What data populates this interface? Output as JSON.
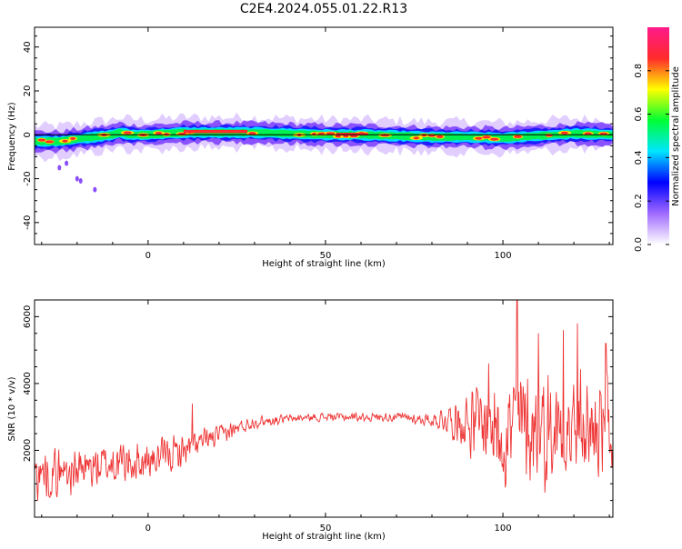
{
  "title": "C2E4.2024.055.01.22.R13",
  "chart_data": [
    {
      "type": "heatmap",
      "xlabel": "Height of straight line (km)",
      "ylabel": "Frequency (Hz)",
      "xlim": [
        -32,
        131
      ],
      "ylim": [
        -50,
        49
      ],
      "xticks": [
        0,
        50,
        100
      ],
      "yticks": [
        -40,
        -20,
        0,
        20,
        40
      ],
      "center_freq": {
        "x": [
          -32,
          -25,
          -20,
          -15,
          -10,
          -8,
          -5,
          0,
          10,
          20,
          30,
          40,
          50,
          60,
          70,
          80,
          90,
          100,
          110,
          120,
          131
        ],
        "y": [
          -3,
          -3,
          -2,
          -1,
          0,
          1,
          0,
          0,
          1,
          1,
          1,
          0.5,
          0,
          0,
          -0.5,
          -1,
          -1,
          -1.5,
          -0.5,
          0.5,
          0
        ]
      },
      "colorbar": {
        "label": "Normalized spectral amplitude",
        "ticks": [
          0.0,
          0.2,
          0.4,
          0.6,
          0.8
        ],
        "range": [
          0.0,
          1.0
        ],
        "colors": [
          "#ffffff",
          "#a06bff",
          "#0000ff",
          "#00e6ff",
          "#00ff33",
          "#ffff00",
          "#ff2a2a",
          "#ff1a8c"
        ]
      }
    },
    {
      "type": "line",
      "xlabel": "Height of straight line (km)",
      "ylabel": "SNR (10 * v/v)",
      "xlim": [
        -32,
        131
      ],
      "ylim": [
        0,
        6500
      ],
      "xticks": [
        0,
        50,
        100
      ],
      "yticks": [
        2000,
        4000,
        6000
      ],
      "color": "#ee3333",
      "trend": {
        "x": [
          -32,
          -20,
          -10,
          0,
          10,
          20,
          30,
          40,
          50,
          60,
          70,
          80,
          85,
          90,
          95,
          100,
          105,
          110,
          120,
          131
        ],
        "y": [
          1300,
          1400,
          1600,
          1650,
          2000,
          2450,
          2850,
          2950,
          3000,
          3000,
          3000,
          2900,
          2950,
          2850,
          2800,
          2650,
          2750,
          2700,
          2650,
          2600
        ]
      },
      "noise_amplitude": {
        "x": [
          -32,
          -10,
          0,
          10,
          20,
          30,
          40,
          50,
          60,
          70,
          80,
          85,
          90,
          95,
          100,
          110,
          120,
          131
        ],
        "y": [
          900,
          800,
          650,
          600,
          350,
          220,
          150,
          150,
          150,
          170,
          220,
          600,
          1100,
          1600,
          2100,
          2100,
          2000,
          1900
        ]
      },
      "spikes": [
        {
          "x": 12.5,
          "y": 3400
        },
        {
          "x": 96,
          "y": 4600
        },
        {
          "x": 104,
          "y": 6500
        },
        {
          "x": 110,
          "y": 5500
        },
        {
          "x": 117,
          "y": 5600
        },
        {
          "x": 121,
          "y": 5800
        },
        {
          "x": 129,
          "y": 5200
        }
      ]
    }
  ]
}
